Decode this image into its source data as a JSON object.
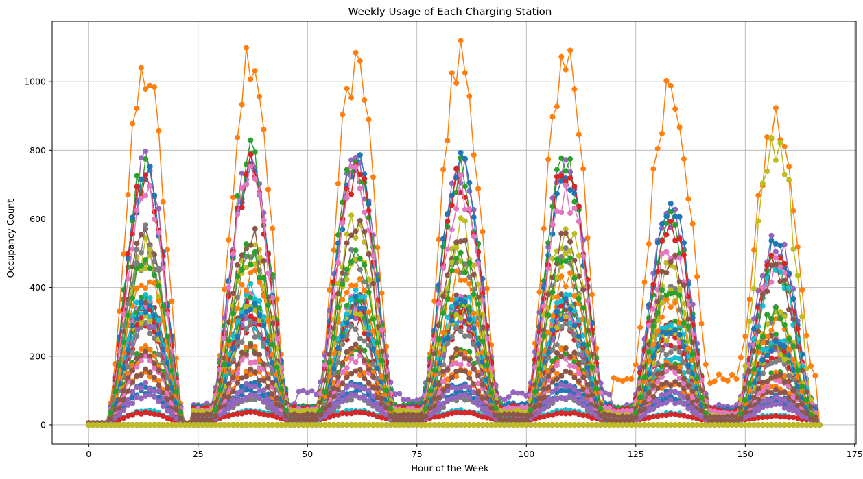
{
  "chart_data": {
    "type": "line",
    "title": "Weekly Usage of Each Charging Station",
    "xlabel": "Hour of the Week",
    "ylabel": "Occupancy Count",
    "xlim": [
      -8.35,
      175.35
    ],
    "ylim": [
      -56,
      1176
    ],
    "x_ticks": [
      0,
      25,
      50,
      75,
      100,
      125,
      150,
      175
    ],
    "y_ticks": [
      0,
      200,
      400,
      600,
      800,
      1000
    ],
    "grid": true,
    "marker": "circle",
    "x": "hours 0-167 (168 points per series)",
    "daily_peaks": {
      "note": "peak occupancy per day (Mon..Sun) per series; series follow the matplotlib tab10 color cycle",
      "day_centers": [
        13,
        37,
        61,
        85,
        109,
        133,
        157
      ]
    },
    "series": [
      {
        "color": "#ff7f0e",
        "peaks": [
          1045,
          1118,
          1082,
          1088,
          1108,
          1027,
          896
        ],
        "night": [
          5,
          10,
          25,
          38,
          45,
          130,
          140
        ]
      },
      {
        "color": "#9467bd",
        "peaks": [
          760,
          770,
          770,
          768,
          765,
          625,
          555
        ],
        "night": [
          5,
          60,
          95,
          75,
          90,
          55,
          55
        ]
      },
      {
        "color": "#2ca02c",
        "peaks": [
          765,
          790,
          785,
          752,
          778,
          605,
          480
        ],
        "night": [
          5,
          55,
          55,
          60,
          55,
          50,
          40
        ]
      },
      {
        "color": "#1f77b4",
        "peaks": [
          740,
          760,
          760,
          760,
          750,
          630,
          520
        ],
        "night": [
          5,
          50,
          50,
          55,
          60,
          45,
          45
        ]
      },
      {
        "color": "#d62728",
        "peaks": [
          740,
          750,
          760,
          752,
          760,
          590,
          500
        ],
        "night": [
          5,
          50,
          50,
          50,
          55,
          45,
          40
        ]
      },
      {
        "color": "#e377c2",
        "peaks": [
          700,
          720,
          730,
          690,
          700,
          520,
          470
        ],
        "night": [
          5,
          45,
          45,
          45,
          50,
          40,
          35
        ]
      },
      {
        "color": "#bcbd22",
        "peaks": [
          520,
          560,
          600,
          580,
          580,
          460,
          856
        ],
        "night": [
          5,
          40,
          40,
          40,
          40,
          30,
          25
        ]
      },
      {
        "color": "#17becf",
        "peaks": [
          330,
          310,
          330,
          320,
          300,
          200,
          470
        ],
        "night": [
          5,
          25,
          25,
          25,
          25,
          20,
          20
        ]
      },
      {
        "color": "#8c564b",
        "peaks": [
          560,
          560,
          600,
          550,
          560,
          480,
          450
        ],
        "night": [
          5,
          30,
          30,
          30,
          30,
          25,
          25
        ]
      },
      {
        "color": "#7f7f7f",
        "peaks": [
          560,
          80,
          80,
          80,
          80,
          80,
          70
        ],
        "night": [
          5,
          10,
          10,
          10,
          10,
          10,
          10
        ]
      }
    ]
  }
}
